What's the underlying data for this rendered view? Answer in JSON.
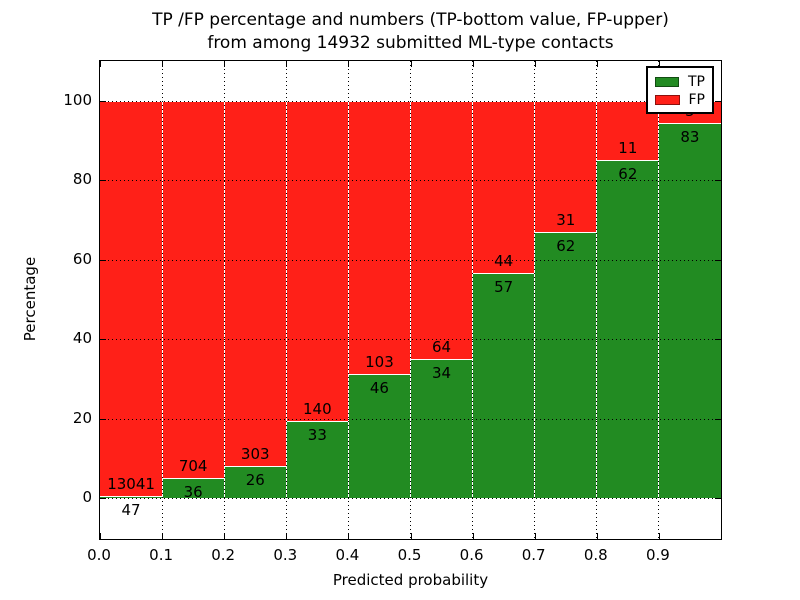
{
  "title": {
    "line1": "TP /FP percentage and numbers (TP-bottom value, FP-upper)",
    "line2": "from among 14932 submitted ML-type contacts"
  },
  "axes": {
    "xlabel": "Predicted probability",
    "ylabel": "Percentage",
    "x_tick_labels": [
      "0.0",
      "0.1",
      "0.2",
      "0.3",
      "0.4",
      "0.5",
      "0.6",
      "0.7",
      "0.8",
      "0.9"
    ],
    "y_tick_labels": [
      "0",
      "20",
      "40",
      "60",
      "80",
      "100"
    ],
    "y_tick_values": [
      0,
      20,
      40,
      60,
      80,
      100
    ],
    "xlim": [
      0.0,
      1.0
    ],
    "ylim": [
      -10.8,
      110
    ],
    "grid": "dotted"
  },
  "legend": {
    "position": "upper right",
    "entries": [
      {
        "label": "TP",
        "color": "#228B22"
      },
      {
        "label": "FP",
        "color": "#FF2018"
      }
    ]
  },
  "chart_data": {
    "type": "bar",
    "stacked": true,
    "normalized_to": 100,
    "bin_width": 0.1,
    "bin_starts": [
      0.0,
      0.1,
      0.2,
      0.3,
      0.4,
      0.5,
      0.6,
      0.7,
      0.8,
      0.9
    ],
    "series": [
      {
        "name": "TP",
        "color": "#228B22",
        "counts": [
          47,
          36,
          26,
          33,
          46,
          34,
          57,
          62,
          62,
          83
        ],
        "percent": [
          0.36,
          4.86,
          7.9,
          19.08,
          30.87,
          34.69,
          56.44,
          66.67,
          84.93,
          94.32
        ]
      },
      {
        "name": "FP",
        "color": "#FF2018",
        "counts": [
          13041,
          704,
          303,
          140,
          103,
          64,
          44,
          31,
          11,
          5
        ],
        "percent": [
          99.64,
          95.14,
          92.1,
          80.92,
          69.13,
          65.31,
          43.56,
          33.33,
          15.07,
          5.68
        ]
      }
    ],
    "total": 14932,
    "title": "TP /FP percentage and numbers (TP-bottom value, FP-upper) from among 14932 submitted ML-type contacts",
    "xlabel": "Predicted probability",
    "ylabel": "Percentage"
  }
}
